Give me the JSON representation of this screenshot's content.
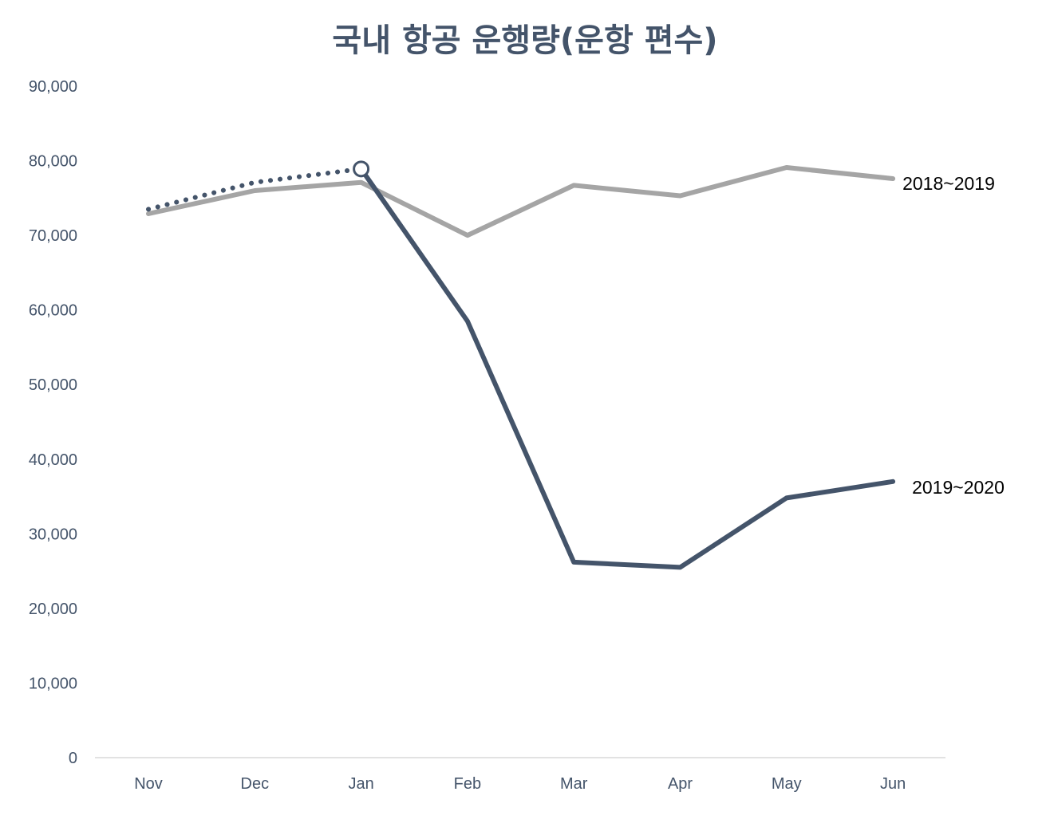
{
  "chart_data": {
    "type": "line",
    "title": "국내 항공 운행량(운항 편수)",
    "xlabel": "",
    "ylabel": "",
    "categories": [
      "Nov",
      "Dec",
      "Jan",
      "Feb",
      "Mar",
      "Apr",
      "May",
      "Jun"
    ],
    "ylim": [
      0,
      90000
    ],
    "yticks": [
      0,
      10000,
      20000,
      30000,
      40000,
      50000,
      60000,
      70000,
      80000,
      90000
    ],
    "ytick_labels": [
      "0",
      "10,000",
      "20,000",
      "30,000",
      "40,000",
      "50,000",
      "60,000",
      "70,000",
      "80,000",
      "90,000"
    ],
    "grid": false,
    "legend": "direct labels at line ends",
    "series": [
      {
        "name": "2018~2019",
        "color": "#a5a5a5",
        "values": [
          72900,
          76000,
          77100,
          70000,
          76700,
          75300,
          79100,
          77600
        ]
      },
      {
        "name": "2019~2020",
        "color": "#44546a",
        "values": [
          73500,
          77100,
          78900,
          58500,
          26200,
          25500,
          34800,
          37000
        ],
        "dotted_until_index": 2,
        "open_marker_index": 2
      }
    ]
  }
}
